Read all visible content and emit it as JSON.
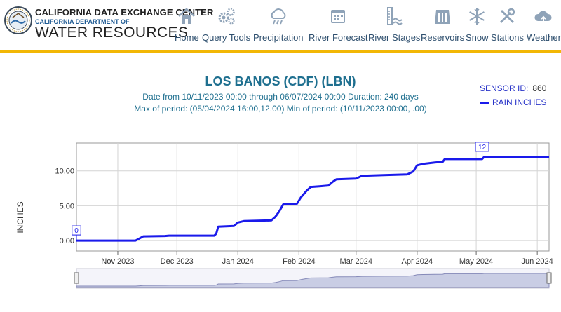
{
  "header": {
    "brand_line1": "CALIFORNIA DATA EXCHANGE CENTER",
    "brand_line2": "CALIFORNIA DEPARTMENT OF",
    "brand_line3": "WATER RESOURCES",
    "nav": [
      {
        "label": "Home",
        "icon": "home-icon"
      },
      {
        "label": "Query Tools",
        "icon": "gears-icon"
      },
      {
        "label": "Precipitation",
        "icon": "rain-cloud-icon"
      },
      {
        "label": "River Forecast",
        "icon": "calendar-icon"
      },
      {
        "label": "River Stages",
        "icon": "gauge-icon"
      },
      {
        "label": "Reservoirs",
        "icon": "dam-icon"
      },
      {
        "label": "Snow",
        "icon": "snowflake-icon"
      },
      {
        "label": "Stations",
        "icon": "tools-icon"
      },
      {
        "label": "Weather",
        "icon": "cloud-icon"
      }
    ],
    "accent_color": "#f2b705",
    "nav_icon_color": "#8fa3b8"
  },
  "chart_data": {
    "type": "line",
    "title": "LOS BANOS (CDF) (LBN)",
    "subtitle_line1": "Date from 10/11/2023 00:00 through 06/07/2024 00:00 Duration: 240 days",
    "subtitle_line2": "Max of period: (05/04/2024 16:00,12.00) Min of period: (10/11/2023 00:00, .00)",
    "sensor_label": "SENSOR ID:",
    "sensor_id": "860",
    "ylabel": "INCHES",
    "ylim": [
      -1.5,
      14
    ],
    "yticks": [
      0,
      5,
      10
    ],
    "ytick_labels": [
      "0.00",
      "5.00",
      "10.00"
    ],
    "xlim": [
      "2023-10-11",
      "2024-06-07"
    ],
    "xticks": [
      {
        "date": "2023-11-01",
        "label": "Nov 2023"
      },
      {
        "date": "2023-12-01",
        "label": "Dec 2023"
      },
      {
        "date": "2024-01-01",
        "label": "Jan 2024"
      },
      {
        "date": "2024-02-01",
        "label": "Feb 2024"
      },
      {
        "date": "2024-03-01",
        "label": "Mar 2024"
      },
      {
        "date": "2024-04-01",
        "label": "Apr 2024"
      },
      {
        "date": "2024-05-01",
        "label": "May 2024"
      },
      {
        "date": "2024-06-01",
        "label": "Jun 2024"
      }
    ],
    "grid": true,
    "legend_position": "top-right",
    "series": [
      {
        "name": "RAIN INCHES",
        "color": "#1a1aeb",
        "points": [
          [
            "2023-10-11",
            0.0
          ],
          [
            "2023-11-10",
            0.0
          ],
          [
            "2023-11-12",
            0.3
          ],
          [
            "2023-11-14",
            0.6
          ],
          [
            "2023-11-25",
            0.65
          ],
          [
            "2023-11-27",
            0.7
          ],
          [
            "2023-12-20",
            0.7
          ],
          [
            "2023-12-21",
            1.0
          ],
          [
            "2023-12-22",
            2.0
          ],
          [
            "2023-12-30",
            2.1
          ],
          [
            "2024-01-01",
            2.6
          ],
          [
            "2024-01-04",
            2.8
          ],
          [
            "2024-01-18",
            2.9
          ],
          [
            "2024-01-20",
            3.4
          ],
          [
            "2024-01-22",
            4.2
          ],
          [
            "2024-01-24",
            5.2
          ],
          [
            "2024-01-31",
            5.3
          ],
          [
            "2024-02-02",
            6.2
          ],
          [
            "2024-02-05",
            7.2
          ],
          [
            "2024-02-07",
            7.7
          ],
          [
            "2024-02-12",
            7.8
          ],
          [
            "2024-02-16",
            7.9
          ],
          [
            "2024-02-18",
            8.4
          ],
          [
            "2024-02-20",
            8.8
          ],
          [
            "2024-03-01",
            8.9
          ],
          [
            "2024-03-04",
            9.3
          ],
          [
            "2024-03-15",
            9.4
          ],
          [
            "2024-03-27",
            9.5
          ],
          [
            "2024-03-30",
            9.9
          ],
          [
            "2024-04-01",
            10.8
          ],
          [
            "2024-04-04",
            11.0
          ],
          [
            "2024-04-10",
            11.2
          ],
          [
            "2024-04-14",
            11.3
          ],
          [
            "2024-04-15",
            11.7
          ],
          [
            "2024-05-04",
            11.7
          ],
          [
            "2024-05-05",
            12.0
          ],
          [
            "2024-06-07",
            12.0
          ]
        ]
      }
    ],
    "annotations": [
      {
        "label": "0",
        "date": "2023-10-11",
        "value": 0.0
      },
      {
        "label": "12",
        "date": "2024-05-04",
        "value": 12.0
      }
    ]
  }
}
